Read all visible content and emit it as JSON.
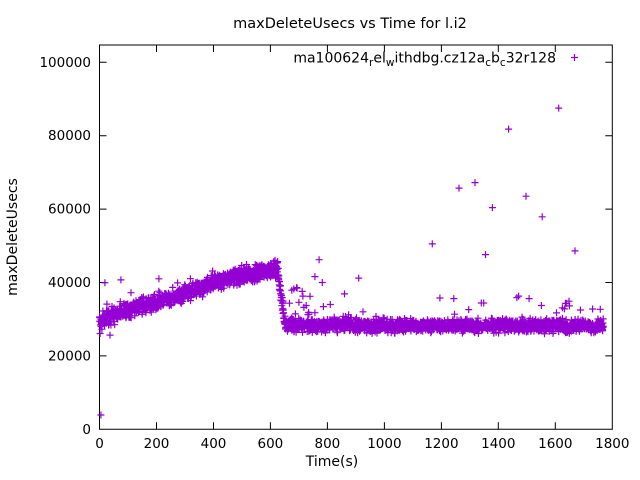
{
  "window": {
    "title": "gnuplot chart"
  },
  "chart_data": {
    "type": "scatter",
    "title": "maxDeleteUsecs vs Time for l.i2",
    "xlabel": "Time(s)",
    "ylabel": "maxDeleteUsecs",
    "xlim": [
      0,
      1800
    ],
    "ylim": [
      0,
      104700
    ],
    "x_ticks": [
      0,
      200,
      400,
      600,
      800,
      1000,
      1200,
      1400,
      1600,
      1800
    ],
    "y_ticks": [
      0,
      20000,
      40000,
      60000,
      80000,
      100000
    ],
    "grid": false,
    "legend_position": "top-right-inside",
    "marker_glyph": "+",
    "series": [
      {
        "name": "ma100624_rel_withdbg.cz12a_cb_c32r128",
        "name_segments": [
          {
            "t": "ma100624",
            "sub": false
          },
          {
            "t": "r",
            "sub": true
          },
          {
            "t": "el",
            "sub": false
          },
          {
            "t": "w",
            "sub": true
          },
          {
            "t": "ithdbg.cz12a",
            "sub": false
          },
          {
            "t": "c",
            "sub": true
          },
          {
            "t": "b",
            "sub": false
          },
          {
            "t": "c",
            "sub": true
          },
          {
            "t": "32r128",
            "sub": false
          }
        ],
        "color": "#9400D3",
        "marker": "plus"
      }
    ],
    "t_start": 0,
    "t_end": 1768,
    "samples_per_second": 1.5,
    "band_profile": {
      "comment_anchors_are_t_vs_center_value": true,
      "anchors": [
        [
          0,
          29600
        ],
        [
          60,
          31400
        ],
        [
          130,
          33300
        ],
        [
          200,
          34800
        ],
        [
          270,
          36200
        ],
        [
          340,
          38100
        ],
        [
          410,
          40200
        ],
        [
          480,
          41600
        ],
        [
          550,
          42700
        ],
        [
          625,
          43400
        ],
        [
          652,
          28400
        ],
        [
          750,
          28300
        ],
        [
          850,
          28700
        ],
        [
          950,
          28300
        ],
        [
          1768,
          28150
        ]
      ],
      "halfwidth_rise_phase": 2100,
      "halfwidth_drop_phase": 1900,
      "halfwidth_steady_phase": 1700,
      "drop_interval": [
        625,
        652
      ]
    },
    "outliers": [
      [
        5,
        3900
      ],
      [
        19,
        39900
      ],
      [
        26,
        34100
      ],
      [
        75,
        40700
      ],
      [
        675,
        37900
      ],
      [
        692,
        38600
      ],
      [
        700,
        34600
      ],
      [
        756,
        41600
      ],
      [
        771,
        46200
      ],
      [
        860,
        36900
      ],
      [
        910,
        41200
      ],
      [
        1168,
        50500
      ],
      [
        1262,
        65700
      ],
      [
        1318,
        67200
      ],
      [
        1340,
        34400
      ],
      [
        1355,
        47600
      ],
      [
        1379,
        60400
      ],
      [
        1436,
        81800
      ],
      [
        1497,
        63500
      ],
      [
        1508,
        35600
      ],
      [
        1554,
        57900
      ],
      [
        1612,
        87500
      ],
      [
        1625,
        33100
      ],
      [
        1640,
        34300
      ],
      [
        1648,
        34900
      ],
      [
        1669,
        48600
      ],
      [
        1688,
        32500
      ],
      [
        1758,
        32700
      ]
    ],
    "colors": {
      "marker": "#9400D3",
      "axis": "#000000",
      "text": "#000000",
      "background": "#ffffff"
    }
  }
}
